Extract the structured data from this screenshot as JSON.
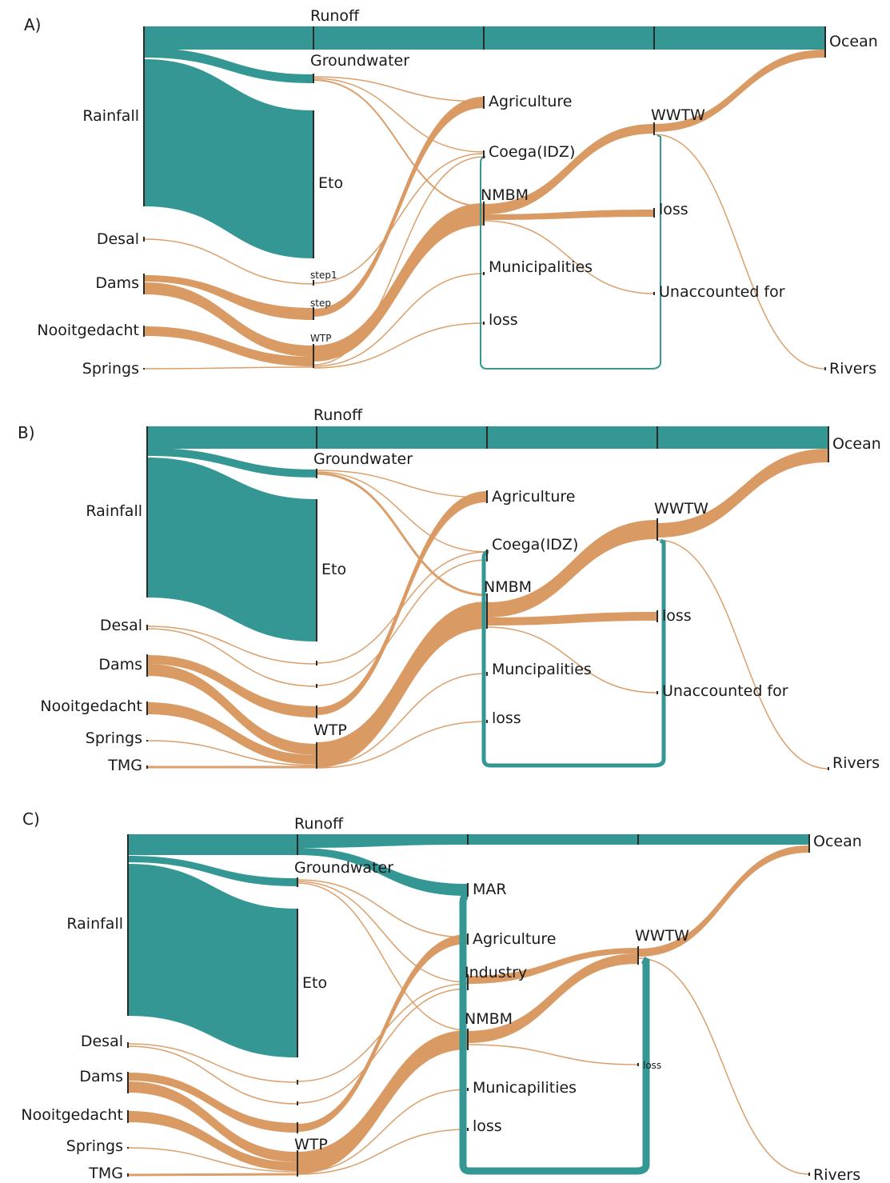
{
  "colors": {
    "water": "#349794",
    "flow": "#d99a63",
    "node": "#2a2a2a"
  },
  "panels": [
    {
      "id": "A",
      "label": "A)",
      "labels": {
        "runoff": "Runoff",
        "ocean": "Ocean",
        "groundwater": "Groundwater",
        "rainfall": "Rainfall",
        "eto": "Eto",
        "desal": "Desal",
        "dams": "Dams",
        "nooitgedacht": "Nooitgedacht",
        "springs": "Springs",
        "step1": "step1",
        "step": "step",
        "wtp": "WTP",
        "agriculture": "Agriculture",
        "coega": "Coega(IDZ)",
        "nmbm": "NMBM",
        "municipalities": "Municipalities",
        "loss_mid": "loss",
        "wwtw": "WWTW",
        "loss_right": "loss",
        "unaccounted": "Unaccounted for",
        "rivers": "Rivers"
      }
    },
    {
      "id": "B",
      "label": "B)",
      "labels": {
        "runoff": "Runoff",
        "ocean": "Ocean",
        "groundwater": "Groundwater",
        "rainfall": "Rainfall",
        "eto": "Eto",
        "desal": "Desal",
        "dams": "Dams",
        "nooitgedacht": "Nooitgedacht",
        "springs": "Springs",
        "tmg": "TMG",
        "wtp": "WTP",
        "agriculture": "Agriculture",
        "coega": "Coega(IDZ)",
        "nmbm": "NMBM",
        "municipalities": "Muncipalities",
        "loss_mid": "loss",
        "wwtw": "WWTW",
        "loss_right": "loss",
        "unaccounted": "Unaccounted for",
        "rivers": "Rivers"
      }
    },
    {
      "id": "C",
      "label": "C)",
      "labels": {
        "runoff": "Runoff",
        "ocean": "Ocean",
        "groundwater": "Groundwater",
        "rainfall": "Rainfall",
        "eto": "Eto",
        "desal": "Desal",
        "dams": "Dams",
        "nooitgedacht": "Nooitgedacht",
        "springs": "Springs",
        "tmg": "TMG",
        "wtp": "WTP",
        "mar": "MAR",
        "agriculture": "Agriculture",
        "industry": "Industry",
        "nmbm": "NMBM",
        "municipalities": "Municapilities",
        "loss_mid": "loss",
        "wwtw": "WWTW",
        "loss_right": "loss",
        "rivers": "Rivers"
      }
    }
  ]
}
